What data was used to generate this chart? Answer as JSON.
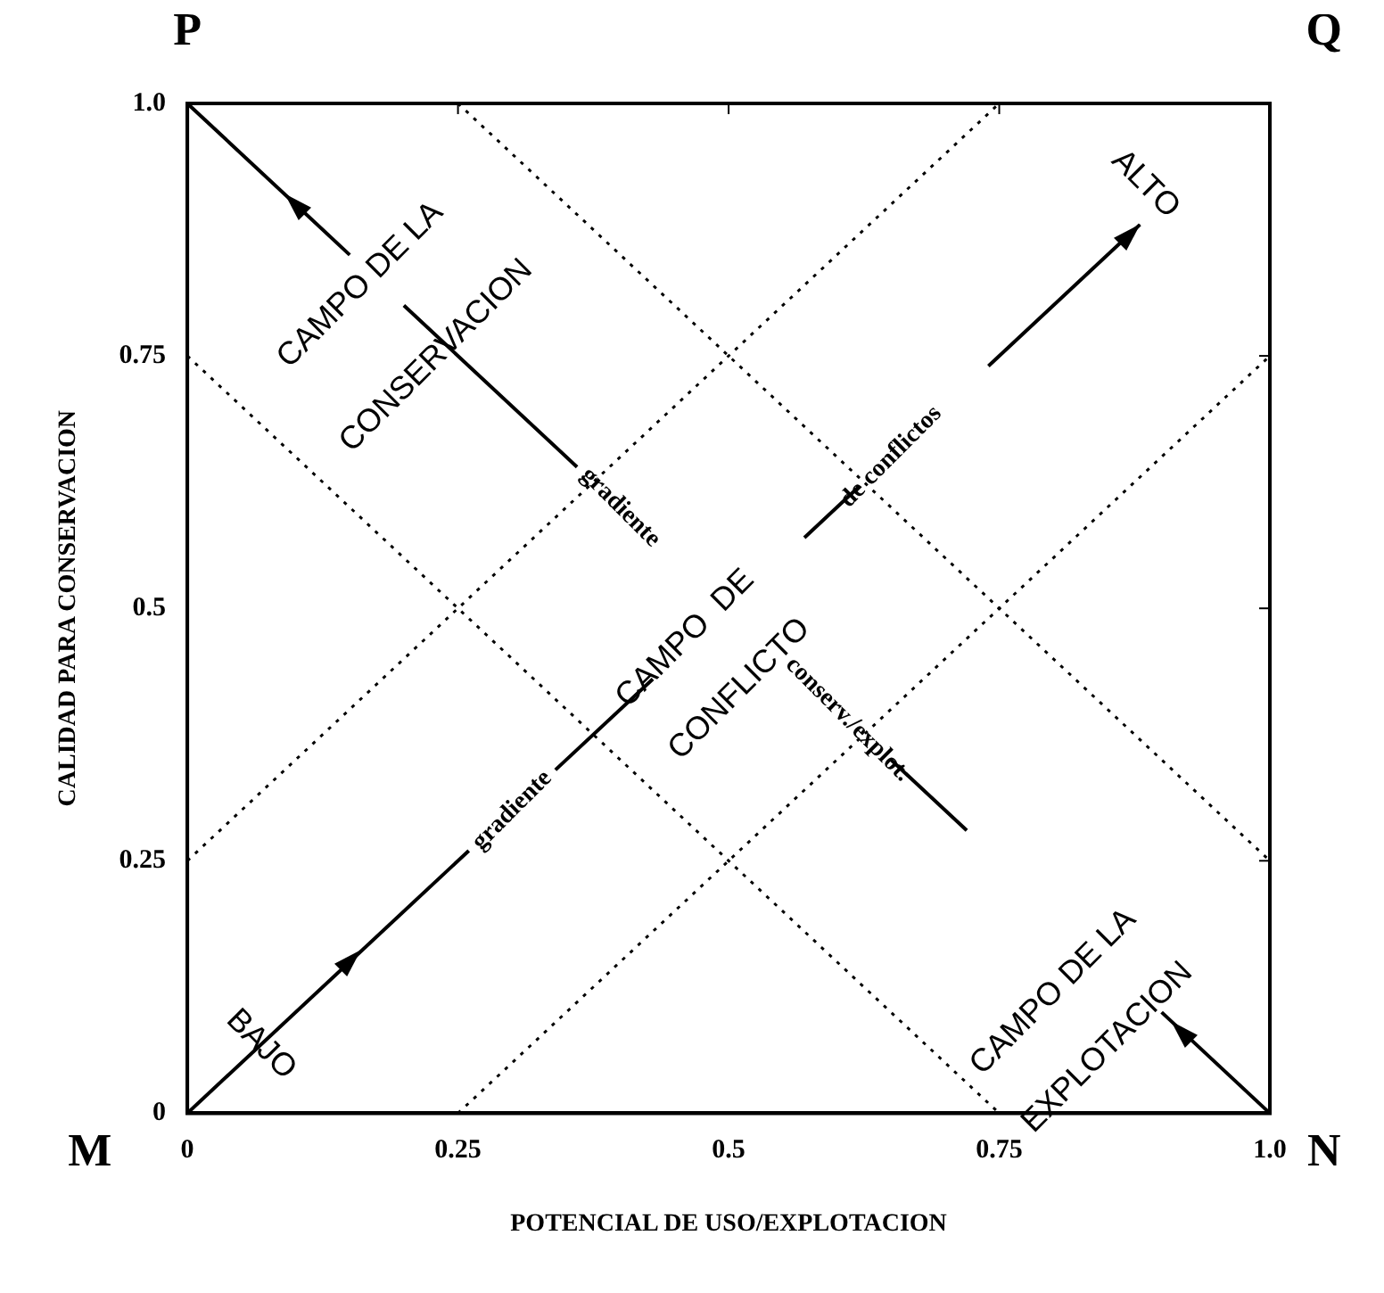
{
  "chart_data": {
    "type": "line",
    "xlabel": "POTENCIAL DE USO/EXPLOTACION",
    "ylabel": "CALIDAD PARA CONSERVACION",
    "xlim": [
      0,
      1
    ],
    "ylim": [
      0,
      1
    ],
    "xticks": [
      0,
      0.25,
      0.5,
      0.75,
      {
        "value": 1,
        "label": "1.0"
      }
    ],
    "yticks": [
      0,
      0.25,
      0.5,
      0.75,
      {
        "value": 1,
        "label": "1.0"
      }
    ],
    "series": [
      {
        "color": "#000000",
        "line_style": "solid",
        "x": [
          0,
          0.26,
          0.3,
          0.34,
          0.43,
          0.5,
          0.57,
          0.62,
          0.68,
          0.74,
          0.88
        ],
        "values": [
          0,
          0.26,
          null,
          0.34,
          0.43,
          null,
          0.57,
          0.62,
          null,
          0.74,
          0.88
        ]
      },
      {
        "color": "#000000",
        "line_style": "solid",
        "x": [
          0,
          0.15,
          0.18,
          0.2,
          0.36,
          0.5,
          0.65,
          0.72,
          0.8,
          0.9,
          1
        ],
        "values": [
          1,
          0.85,
          null,
          0.8,
          0.64,
          null,
          0.35,
          0.28,
          null,
          0.1,
          0
        ]
      },
      {
        "color": "#000000",
        "line_style": "dotted",
        "x": [
          0,
          0.75
        ],
        "values": [
          0.25,
          1
        ]
      },
      {
        "color": "#000000",
        "line_style": "dotted",
        "x": [
          0.25,
          1
        ],
        "values": [
          0,
          0.75
        ]
      },
      {
        "color": "#000000",
        "line_style": "dotted",
        "x": [
          0,
          0.75
        ],
        "values": [
          0.75,
          0
        ]
      },
      {
        "color": "#000000",
        "line_style": "dotted",
        "x": [
          0.25,
          1
        ],
        "values": [
          1,
          0.25
        ]
      }
    ],
    "annotations": [
      "P",
      "Q",
      "M",
      "N",
      "CAMPO DE LA",
      "CONSERVACION",
      "CAMPO  DE",
      "CONFLICTO",
      "CAMPO DE LA",
      "EXPLOTACION",
      "ALTO",
      "BAJO",
      "gradiente",
      "de conflictos",
      "gradiente",
      "conserv./explot."
    ]
  }
}
